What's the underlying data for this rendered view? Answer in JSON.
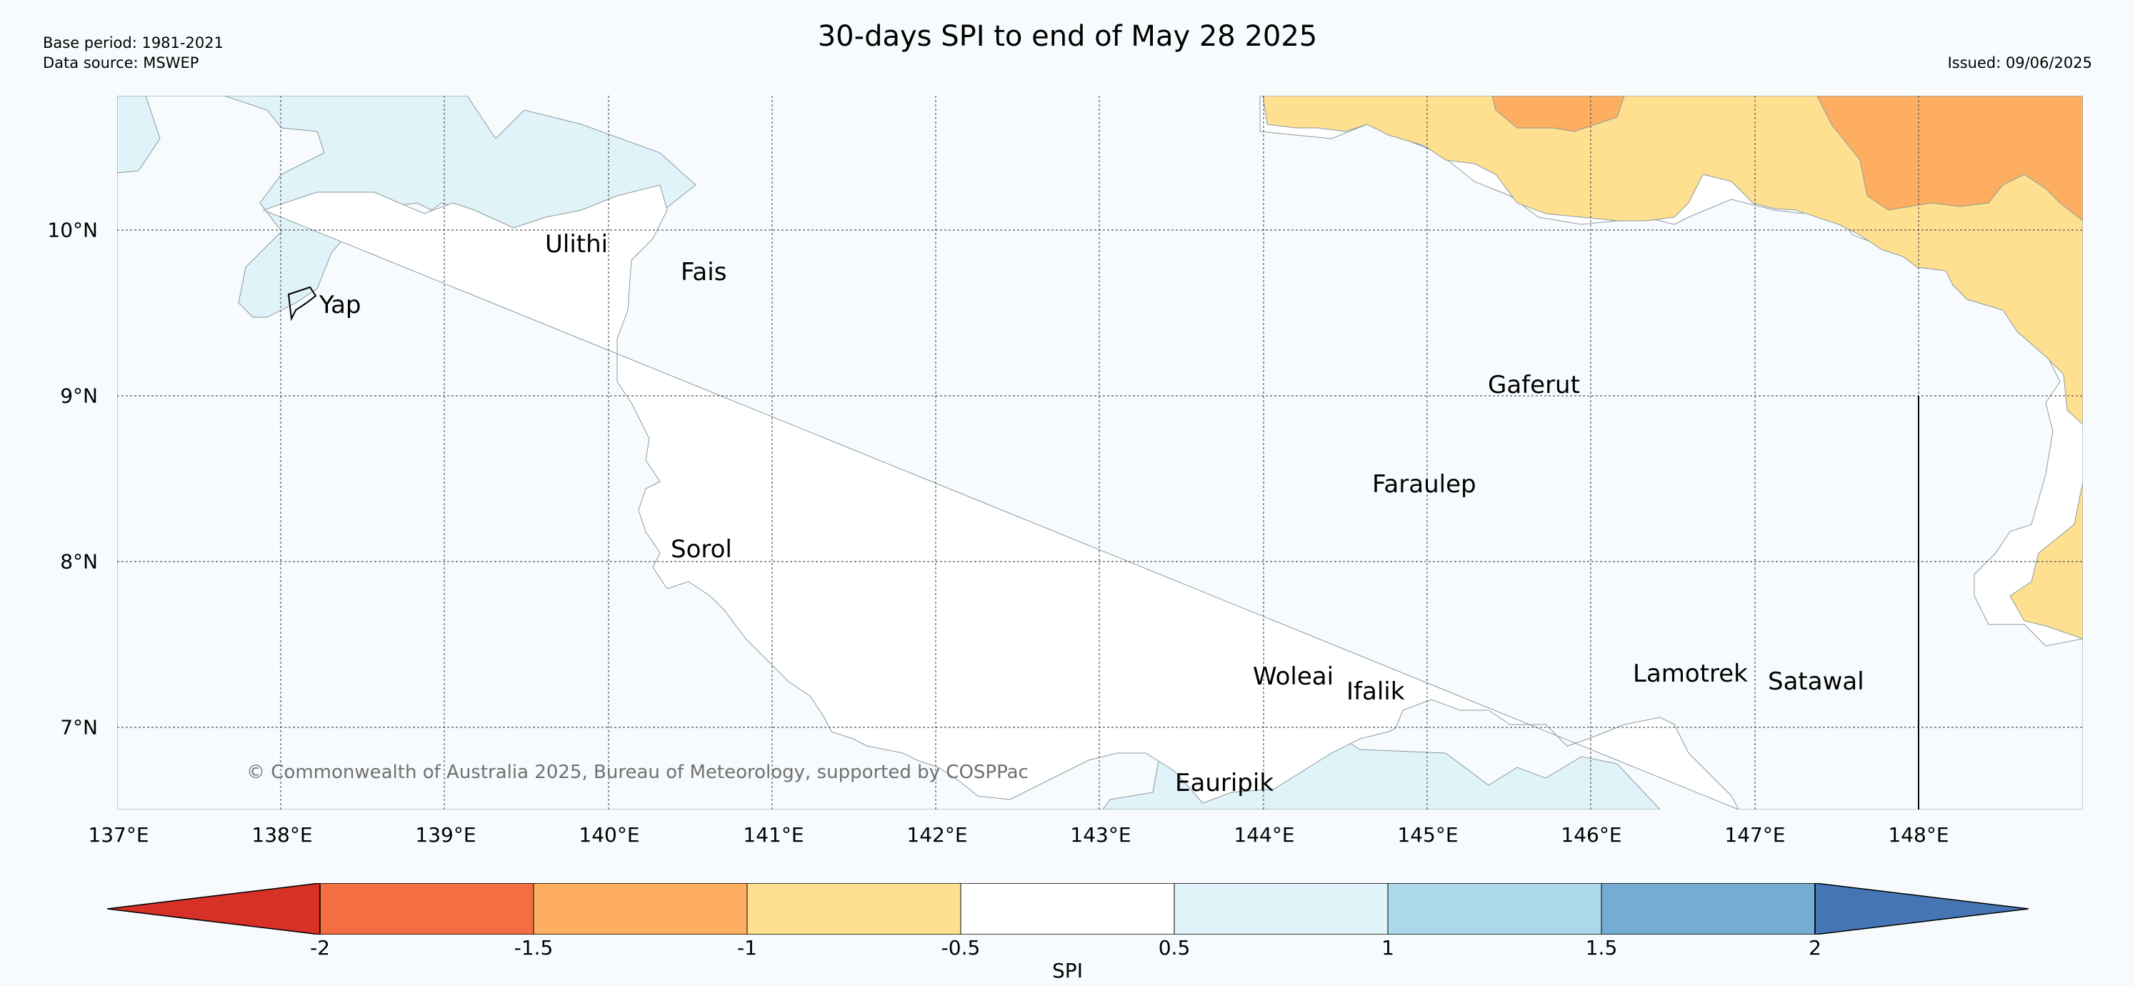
{
  "header": {
    "title": "30-days SPI to end of May 28 2025",
    "base_period": "Base period: 1981-2021",
    "data_source": "Data source: MSWEP",
    "issued": "Issued: 09/06/2025"
  },
  "map": {
    "longitude_ticks": [
      "137°E",
      "138°E",
      "139°E",
      "140°E",
      "141°E",
      "142°E",
      "143°E",
      "144°E",
      "145°E",
      "146°E",
      "147°E",
      "148°E"
    ],
    "latitude_ticks": [
      "10°N",
      "9°N",
      "8°N",
      "7°N"
    ],
    "places": [
      "Ulithi",
      "Fais",
      "Yap",
      "Gaferut",
      "Faraulep",
      "Sorol",
      "Woleai",
      "Ifalik",
      "Lamotrek",
      "Satawal",
      "Eauripik"
    ],
    "copyright": "© Commonwealth of Australia 2025, Bureau of Meteorology, supported by COSPPac",
    "colors": {
      "spi_lt_-2": "#d73027",
      "spi_-2_-1.5": "#f46d43",
      "spi_-1.5_-1": "#fdae61",
      "spi_-1_-0.5": "#fee090",
      "spi_-0.5_0.5": "#ffffff",
      "spi_0.5_1": "#e0f3f8",
      "spi_1_1.5": "#abd9e9",
      "spi_1.5_2": "#74add1",
      "spi_gt_2": "#4575b4"
    }
  },
  "colorbar": {
    "label": "SPI",
    "ticks": [
      "-2",
      "-1.5",
      "-1",
      "-0.5",
      "0.5",
      "1",
      "1.5",
      "2"
    ]
  }
}
